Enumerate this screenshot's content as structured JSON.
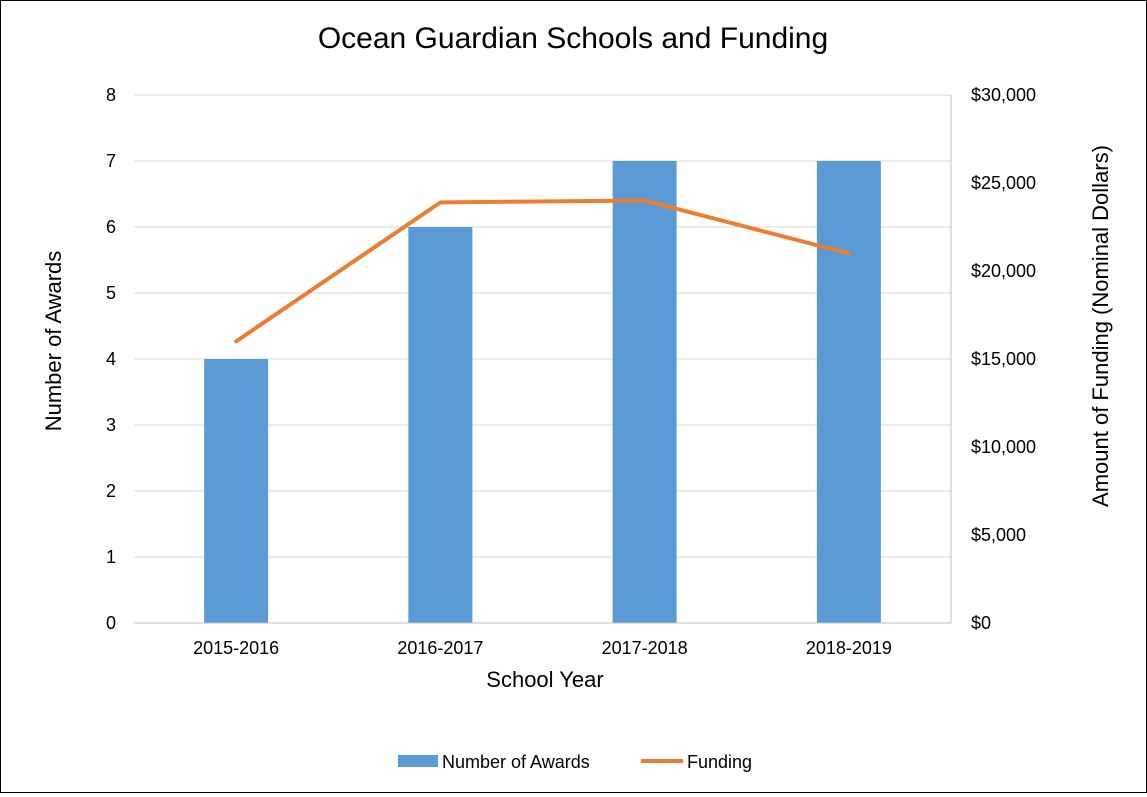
{
  "chart_data": {
    "type": "bar",
    "title": "Ocean Guardian Schools and Funding",
    "xlabel": "School Year",
    "ylabel": "Number of Awards",
    "y2label": "Amount of Funding (Nominal Dollars)",
    "categories": [
      "2015-2016",
      "2016-2017",
      "2017-2018",
      "2018-2019"
    ],
    "ylim": [
      0,
      8
    ],
    "y2lim": [
      0,
      30000
    ],
    "yticks": [
      "0",
      "1",
      "2",
      "3",
      "4",
      "5",
      "6",
      "7",
      "8"
    ],
    "y2ticks": [
      "$0",
      "$5,000",
      "$10,000",
      "$15,000",
      "$20,000",
      "$25,000",
      "$30,000"
    ],
    "grid": true,
    "legend_position": "bottom",
    "series": [
      {
        "name": "Number of Awards",
        "type": "bar",
        "axis": "left",
        "color": "#5b9bd5",
        "values": [
          4,
          6,
          7,
          7
        ]
      },
      {
        "name": "Funding",
        "type": "line",
        "axis": "right",
        "color": "#ed7d31",
        "values": [
          16000,
          23900,
          24000,
          21000
        ]
      }
    ]
  }
}
